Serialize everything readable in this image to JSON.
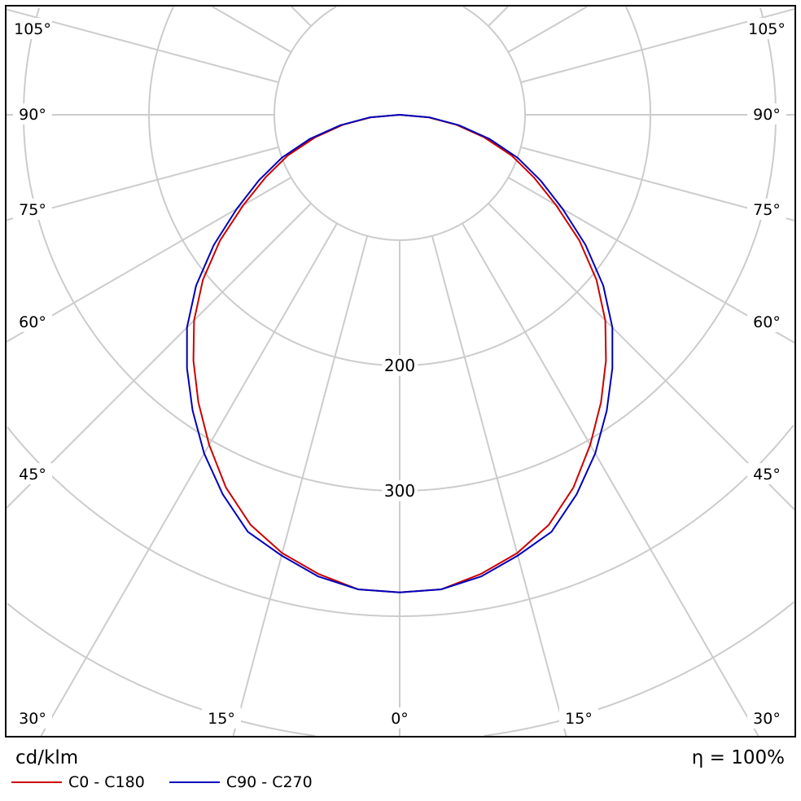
{
  "chart_data": {
    "type": "polar",
    "unit_label": "cd/klm",
    "efficiency_label": "η = 100%",
    "radial_ticks": [
      100,
      200,
      300,
      400,
      500,
      600
    ],
    "radial_tick_labels": [
      "200",
      "300"
    ],
    "angle_labels": [
      "0°",
      "15°",
      "30°",
      "45°",
      "60°",
      "75°",
      "90°",
      "105°"
    ],
    "angles_deg": [
      0,
      5,
      10,
      15,
      20,
      25,
      30,
      35,
      40,
      45,
      50,
      55,
      60,
      65,
      70,
      75,
      80,
      85,
      90
    ],
    "series": [
      {
        "name": "C0 - C180",
        "color": "#cc0000",
        "values": [
          381,
          380,
          372,
          362,
          348,
          328,
          304,
          280,
          256,
          232,
          205,
          175,
          144,
          118,
          95,
          70,
          46,
          23,
          0
        ]
      },
      {
        "name": "C90 - C270",
        "color": "#0000bb",
        "values": [
          381,
          380,
          374,
          364,
          354,
          334,
          312,
          288,
          264,
          240,
          212,
          181,
          150,
          124,
          100,
          74,
          48,
          24,
          0
        ]
      }
    ],
    "grid": true,
    "legend_position": "bottom-left"
  }
}
